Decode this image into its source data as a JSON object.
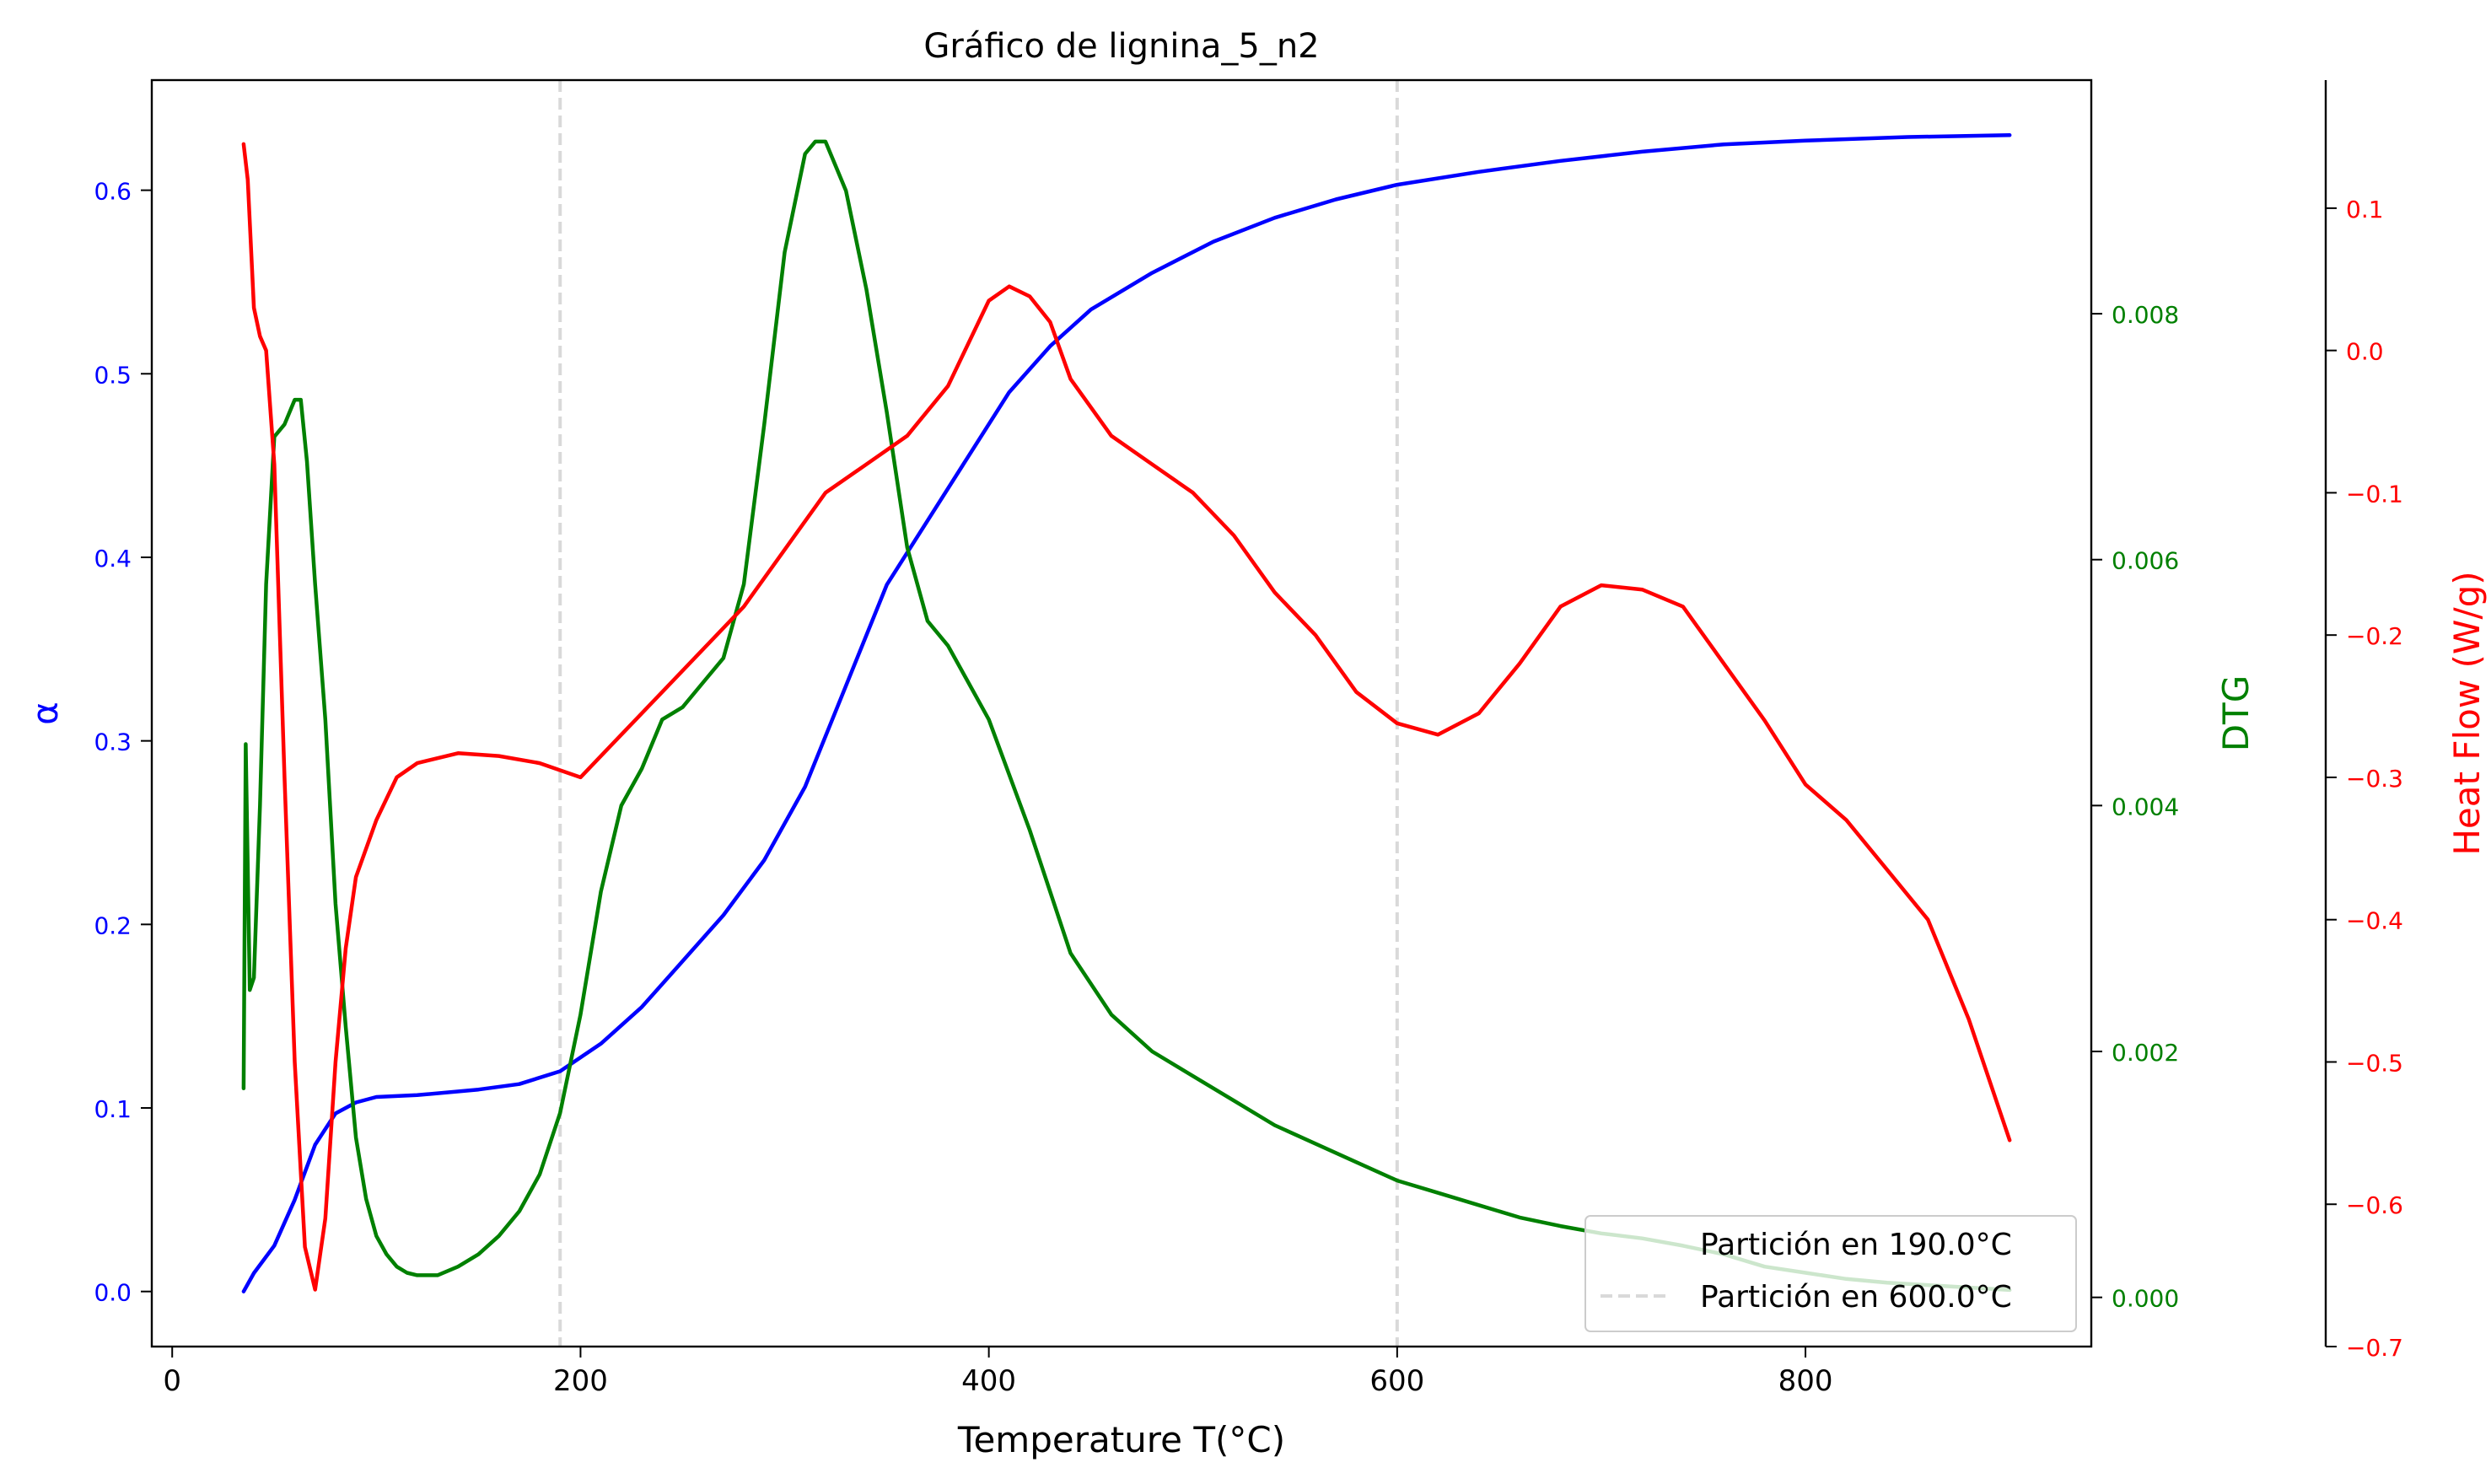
{
  "chart_data": {
    "type": "line",
    "title": "Gráfico de lignina_5_n2",
    "xlabel": "Temperature T(°C)",
    "xlim": [
      -10,
      940
    ],
    "x_ticks": [
      0,
      200,
      400,
      600,
      800
    ],
    "axes": {
      "alpha": {
        "label": "α",
        "color": "#0000ff",
        "ylim": [
          -0.03,
          0.66
        ],
        "ticks": [
          "0.0",
          "0.1",
          "0.2",
          "0.3",
          "0.4",
          "0.5",
          "0.6"
        ]
      },
      "dtg": {
        "label": "DTG",
        "color": "#008000",
        "ylim": [
          -0.0004,
          0.0099
        ],
        "ticks": [
          "0.000",
          "0.002",
          "0.004",
          "0.006",
          "0.008"
        ]
      },
      "heat": {
        "label": "Heat Flow (W/g)",
        "color": "#ff0000",
        "ylim": [
          -0.7,
          0.19
        ],
        "ticks": [
          "−0.7",
          "−0.6",
          "−0.5",
          "−0.4",
          "−0.3",
          "−0.2",
          "−0.1",
          "0.0",
          "0.1"
        ]
      }
    },
    "series": [
      {
        "axis": "alpha",
        "color": "#0000ff",
        "x": [
          35,
          40,
          50,
          60,
          70,
          80,
          90,
          100,
          120,
          150,
          170,
          190,
          210,
          230,
          250,
          270,
          290,
          310,
          330,
          350,
          370,
          390,
          410,
          430,
          450,
          480,
          510,
          540,
          570,
          600,
          640,
          680,
          720,
          760,
          800,
          850,
          900
        ],
        "y": [
          0.0,
          0.01,
          0.025,
          0.05,
          0.08,
          0.097,
          0.103,
          0.106,
          0.107,
          0.11,
          0.113,
          0.12,
          0.135,
          0.155,
          0.18,
          0.205,
          0.235,
          0.275,
          0.33,
          0.385,
          0.42,
          0.455,
          0.49,
          0.515,
          0.535,
          0.555,
          0.572,
          0.585,
          0.595,
          0.603,
          0.61,
          0.616,
          0.621,
          0.625,
          0.627,
          0.629,
          0.63
        ]
      },
      {
        "axis": "dtg",
        "color": "#008000",
        "x": [
          35,
          36,
          38,
          40,
          43,
          46,
          50,
          55,
          60,
          63,
          66,
          70,
          75,
          80,
          85,
          90,
          95,
          100,
          105,
          110,
          115,
          120,
          130,
          140,
          150,
          160,
          170,
          180,
          190,
          200,
          210,
          220,
          230,
          240,
          250,
          260,
          270,
          280,
          290,
          300,
          310,
          315,
          320,
          325,
          330,
          340,
          350,
          360,
          370,
          380,
          390,
          400,
          420,
          440,
          460,
          480,
          500,
          520,
          540,
          560,
          580,
          600,
          620,
          640,
          660,
          680,
          700,
          720,
          740,
          760,
          780,
          800,
          820,
          840,
          860,
          880,
          900
        ],
        "y": [
          0.0017,
          0.0045,
          0.0025,
          0.0026,
          0.004,
          0.0058,
          0.007,
          0.0071,
          0.0073,
          0.0073,
          0.0068,
          0.0058,
          0.0047,
          0.0032,
          0.0022,
          0.0013,
          0.0008,
          0.0005,
          0.00035,
          0.00025,
          0.0002,
          0.00018,
          0.00018,
          0.00025,
          0.00035,
          0.0005,
          0.0007,
          0.001,
          0.0015,
          0.0023,
          0.0033,
          0.004,
          0.0043,
          0.0047,
          0.0048,
          0.005,
          0.0052,
          0.0058,
          0.0071,
          0.0085,
          0.0093,
          0.0094,
          0.0094,
          0.0092,
          0.009,
          0.0082,
          0.0072,
          0.0061,
          0.0055,
          0.0053,
          0.005,
          0.0047,
          0.0038,
          0.0028,
          0.0023,
          0.002,
          0.0018,
          0.0016,
          0.0014,
          0.00125,
          0.0011,
          0.00095,
          0.00085,
          0.00075,
          0.00065,
          0.00058,
          0.00052,
          0.00048,
          0.00042,
          0.00035,
          0.00025,
          0.0002,
          0.00015,
          0.00012,
          0.0001,
          8e-05,
          6e-05
        ]
      },
      {
        "axis": "heat",
        "color": "#ff0000",
        "x": [
          35,
          37,
          40,
          43,
          46,
          50,
          55,
          60,
          65,
          70,
          75,
          80,
          85,
          90,
          100,
          110,
          120,
          140,
          160,
          180,
          200,
          220,
          240,
          260,
          280,
          300,
          320,
          340,
          360,
          380,
          400,
          410,
          420,
          430,
          440,
          460,
          480,
          500,
          520,
          540,
          560,
          580,
          600,
          620,
          640,
          660,
          680,
          700,
          720,
          740,
          760,
          780,
          800,
          820,
          840,
          860,
          880,
          900
        ],
        "y": [
          0.145,
          0.12,
          0.03,
          0.01,
          0.0,
          -0.08,
          -0.3,
          -0.5,
          -0.63,
          -0.66,
          -0.61,
          -0.5,
          -0.42,
          -0.37,
          -0.33,
          -0.3,
          -0.29,
          -0.283,
          -0.285,
          -0.29,
          -0.3,
          -0.27,
          -0.24,
          -0.21,
          -0.18,
          -0.14,
          -0.1,
          -0.08,
          -0.06,
          -0.025,
          0.035,
          0.045,
          0.038,
          0.02,
          -0.02,
          -0.06,
          -0.08,
          -0.1,
          -0.13,
          -0.17,
          -0.2,
          -0.24,
          -0.262,
          -0.27,
          -0.255,
          -0.22,
          -0.18,
          -0.165,
          -0.168,
          -0.18,
          -0.22,
          -0.26,
          -0.305,
          -0.33,
          -0.365,
          -0.4,
          -0.47,
          -0.555
        ]
      }
    ],
    "vlines": [
      190,
      600
    ],
    "legend": {
      "location": "lower right",
      "entries": [
        "Partición en 190.0°C",
        "Partición en 600.0°C"
      ]
    }
  }
}
